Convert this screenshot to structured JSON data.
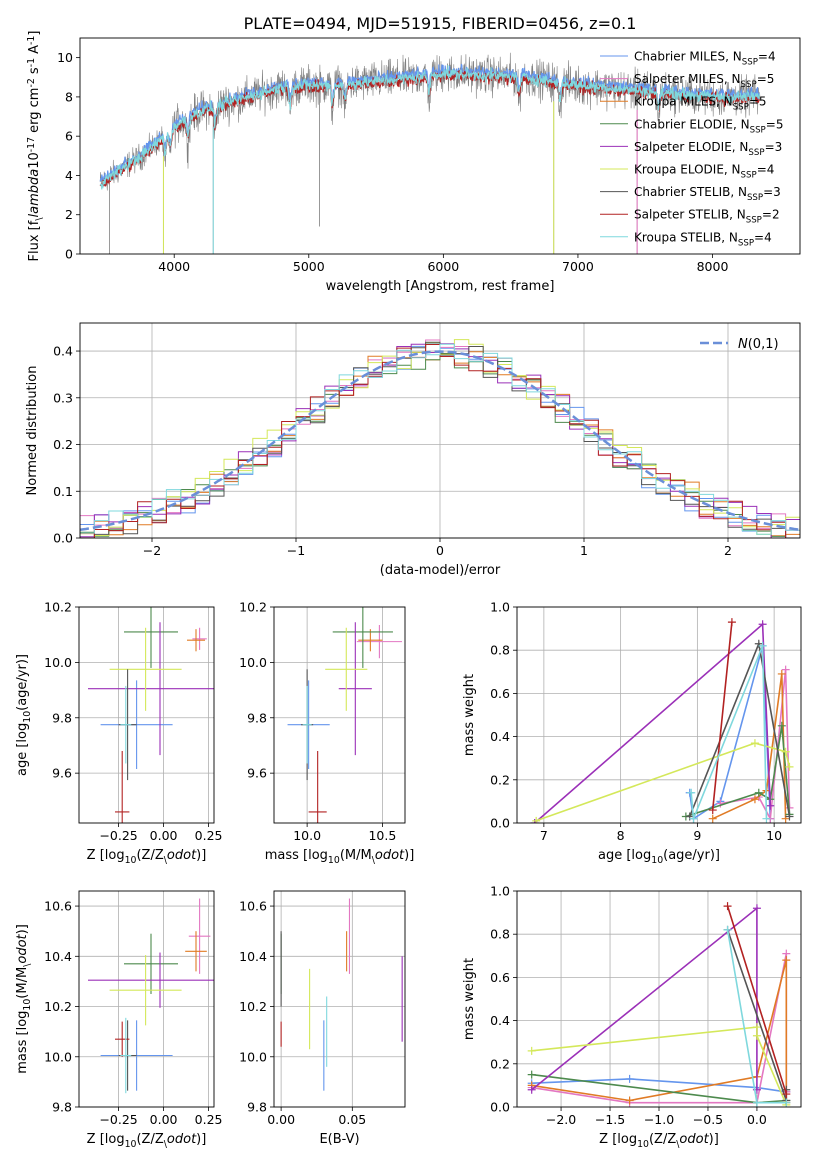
{
  "figure_title": "PLATE=0494, MJD=51915, FIBERID=0456, z=0.1",
  "models": [
    {
      "key": "cm",
      "color": "#6495ed",
      "label": "Chabrier MILES, N$_{SSP}$=4",
      "name": "Chabrier MILES",
      "nssp": "4"
    },
    {
      "key": "sm",
      "color": "#e377c2",
      "label": "Salpeter MILES, N$_{SSP}$=5",
      "name": "Salpeter MILES",
      "nssp": "5"
    },
    {
      "key": "km",
      "color": "#e07b25",
      "label": "Kroupa MILES, N$_{SSP}$=5",
      "name": "Kroupa MILES",
      "nssp": "5"
    },
    {
      "key": "ce",
      "color": "#4d8a4d",
      "label": "Chabrier ELODIE, N$_{SSP}$=5",
      "name": "Chabrier ELODIE",
      "nssp": "5"
    },
    {
      "key": "se",
      "color": "#9b30b8",
      "label": "Salpeter ELODIE, N$_{SSP}$=3",
      "name": "Salpeter ELODIE",
      "nssp": "3"
    },
    {
      "key": "ke",
      "color": "#d4e85a",
      "label": "Kroupa ELODIE, N$_{SSP}$=4",
      "name": "Kroupa ELODIE",
      "nssp": "4"
    },
    {
      "key": "cs",
      "color": "#555555",
      "label": "Chabrier STELIB, N$_{SSP}$=3",
      "name": "Chabrier STELIB",
      "nssp": "3"
    },
    {
      "key": "ss",
      "color": "#b22222",
      "label": "Salpeter STELIB, N$_{SSP}$=2",
      "name": "Salpeter STELIB",
      "nssp": "2"
    },
    {
      "key": "ks",
      "color": "#7fd8dd",
      "label": "Kroupa STELIB, N$_{SSP}$=4",
      "name": "Kroupa STELIB",
      "nssp": "4"
    }
  ],
  "chart_data": [
    {
      "id": "spectrum",
      "type": "line",
      "xlabel": "wavelength [Angstrom, rest frame]",
      "ylabel": "Flux [f$_\\lambda$10$^{-17}$ erg cm$^{-2}$ s$^{-1}$ A$^{-1}$]",
      "xlim": [
        3300,
        8650
      ],
      "ylim": [
        0,
        11
      ],
      "xticks": [
        4000,
        5000,
        6000,
        7000,
        8000
      ],
      "yticks": [
        0,
        2,
        4,
        6,
        8,
        10
      ],
      "grid": false,
      "legend": "right",
      "continuum_points": [
        [
          3450,
          3.6
        ],
        [
          3600,
          4.3
        ],
        [
          3800,
          5.2
        ],
        [
          4000,
          6.5
        ],
        [
          4200,
          7.3
        ],
        [
          4500,
          7.9
        ],
        [
          4800,
          8.5
        ],
        [
          5000,
          8.6
        ],
        [
          5200,
          8.6
        ],
        [
          5500,
          8.8
        ],
        [
          5800,
          9.0
        ],
        [
          6000,
          9.2
        ],
        [
          6300,
          9.1
        ],
        [
          6600,
          9.0
        ],
        [
          7000,
          8.6
        ],
        [
          7500,
          8.3
        ],
        [
          8000,
          8.0
        ],
        [
          8350,
          8.0
        ]
      ],
      "model_line_labels": [
        "Chabrier MILES",
        "Salpeter STELIB",
        "Kroupa STELIB"
      ],
      "absorption_lines": [
        3934,
        3969,
        4102,
        4304,
        4861,
        5175,
        5270,
        5893,
        6563,
        6867,
        7600
      ],
      "spikes": [
        [
          3520,
          0
        ],
        [
          3920,
          0
        ],
        [
          4290,
          0
        ],
        [
          5080,
          1.4
        ],
        [
          6820,
          0
        ],
        [
          7440,
          0
        ]
      ]
    },
    {
      "id": "residuals",
      "type": "histogram",
      "xlabel": "(data-model)/error",
      "ylabel": "Normed distribution",
      "xlim": [
        -2.5,
        2.5
      ],
      "ylim": [
        0,
        0.46
      ],
      "xticks": [
        -2,
        -1,
        0,
        1,
        2
      ],
      "yticks": [
        0.0,
        0.1,
        0.2,
        0.3,
        0.4
      ],
      "grid": true,
      "legend": "top-right",
      "legend_label": "$\\mathcal{N}(0,1)$",
      "bin_width": 0.1
    },
    {
      "id": "age_vs_Z",
      "type": "scatter",
      "xlabel": "Z [log$_{10}$(Z/Z$_\\odot$)]",
      "ylabel": "age  [log$_{10}$(age/yr)]",
      "xlim": [
        -0.47,
        0.28
      ],
      "ylim": [
        9.42,
        10.2
      ],
      "xticks": [
        -0.25,
        0.0,
        0.25
      ],
      "yticks": [
        9.6,
        9.8,
        10.0,
        10.2
      ],
      "grid": true,
      "points": [
        {
          "m": "cm",
          "x": -0.15,
          "y": 9.775,
          "xerr": 0.2,
          "yerr": 0.16
        },
        {
          "m": "sm",
          "x": 0.2,
          "y": 10.085,
          "xerr": 0.04,
          "yerr": 0.04
        },
        {
          "m": "km",
          "x": 0.18,
          "y": 10.08,
          "xerr": 0.05,
          "yerr": 0.04
        },
        {
          "m": "ce",
          "x": -0.07,
          "y": 10.11,
          "xerr": 0.15,
          "yerr": 0.13
        },
        {
          "m": "se",
          "x": -0.02,
          "y": 9.905,
          "xerr": 0.4,
          "yerr": 0.24
        },
        {
          "m": "ke",
          "x": -0.1,
          "y": 9.975,
          "xerr": 0.2,
          "yerr": 0.15
        },
        {
          "m": "cs",
          "x": -0.2,
          "y": 9.775,
          "xerr": 0.05,
          "yerr": 0.2
        },
        {
          "m": "ss",
          "x": -0.23,
          "y": 9.46,
          "xerr": 0.04,
          "yerr": 0.22
        },
        {
          "m": "ks",
          "x": -0.21,
          "y": 9.775,
          "xerr": 0.03,
          "yerr": 0.14
        }
      ]
    },
    {
      "id": "age_vs_mass",
      "type": "scatter",
      "xlabel": "mass [log$_{10}$(M/M$_\\odot$)]",
      "ylabel": "",
      "xlim": [
        9.78,
        10.65
      ],
      "ylim": [
        9.42,
        10.2
      ],
      "xticks": [
        10.0,
        10.5
      ],
      "yticks": [
        9.6,
        9.8,
        10.0,
        10.2
      ],
      "grid": true,
      "points": [
        {
          "m": "cm",
          "x": 10.01,
          "y": 9.775,
          "xerr": 0.14,
          "yerr": 0.16
        },
        {
          "m": "sm",
          "x": 10.48,
          "y": 10.075,
          "xerr": 0.15,
          "yerr": 0.06
        },
        {
          "m": "km",
          "x": 10.42,
          "y": 10.08,
          "xerr": 0.08,
          "yerr": 0.04
        },
        {
          "m": "ce",
          "x": 10.37,
          "y": 10.11,
          "xerr": 0.2,
          "yerr": 0.13
        },
        {
          "m": "se",
          "x": 10.32,
          "y": 9.905,
          "xerr": 0.11,
          "yerr": 0.24
        },
        {
          "m": "ke",
          "x": 10.26,
          "y": 9.975,
          "xerr": 0.14,
          "yerr": 0.15
        },
        {
          "m": "cs",
          "x": 10.0,
          "y": 9.775,
          "xerr": 0.04,
          "yerr": 0.2
        },
        {
          "m": "ss",
          "x": 10.07,
          "y": 9.46,
          "xerr": 0.06,
          "yerr": 0.22
        },
        {
          "m": "ks",
          "x": 10.0,
          "y": 9.775,
          "xerr": 0.03,
          "yerr": 0.14
        }
      ]
    },
    {
      "id": "weight_vs_age",
      "type": "line",
      "xlabel": "age  [log$_{10}$(age/yr)]",
      "ylabel": "mass weight",
      "xlim": [
        6.65,
        10.35
      ],
      "ylim": [
        0,
        1.0
      ],
      "xticks": [
        7,
        8,
        9,
        10
      ],
      "yticks": [
        0.0,
        0.2,
        0.4,
        0.6,
        0.8,
        1.0
      ],
      "grid": true,
      "series": [
        {
          "m": "cm",
          "x": [
            8.9,
            8.95,
            9.3,
            9.85,
            9.95
          ],
          "y": [
            0.14,
            0.02,
            0.1,
            0.82,
            0.02
          ]
        },
        {
          "m": "sm",
          "x": [
            9.3,
            9.8,
            9.95,
            10.15,
            10.2
          ],
          "y": [
            0.09,
            0.12,
            0.02,
            0.71,
            0.07
          ]
        },
        {
          "m": "km",
          "x": [
            9.2,
            9.75,
            9.9,
            10.1,
            10.15
          ],
          "y": [
            0.02,
            0.11,
            0.15,
            0.69,
            0.02
          ]
        },
        {
          "m": "ce",
          "x": [
            8.85,
            9.8,
            9.95,
            10.1,
            10.2
          ],
          "y": [
            0.03,
            0.14,
            0.11,
            0.45,
            0.04
          ]
        },
        {
          "m": "se",
          "x": [
            6.88,
            9.85,
            9.95
          ],
          "y": [
            0.0,
            0.92,
            0.08
          ]
        },
        {
          "m": "ke",
          "x": [
            6.9,
            9.75,
            10.15,
            10.2
          ],
          "y": [
            0.01,
            0.37,
            0.33,
            0.26
          ]
        },
        {
          "m": "cs",
          "x": [
            8.9,
            9.8,
            10.2
          ],
          "y": [
            0.03,
            0.83,
            0.03
          ]
        },
        {
          "m": "ss",
          "x": [
            9.2,
            9.45
          ],
          "y": [
            0.06,
            0.93
          ]
        },
        {
          "m": "ks",
          "x": [
            8.92,
            8.95,
            9.85,
            9.9
          ],
          "y": [
            0.14,
            0.02,
            0.82,
            0.02
          ]
        }
      ]
    },
    {
      "id": "mass_vs_Z",
      "type": "scatter",
      "xlabel": "Z [log$_{10}$(Z/Z$_\\odot$)]",
      "ylabel": "mass [log$_{10}$(M/M$_\\odot$)]",
      "xlim": [
        -0.47,
        0.28
      ],
      "ylim": [
        9.8,
        10.66
      ],
      "xticks": [
        -0.25,
        0.0,
        0.25
      ],
      "yticks": [
        9.8,
        10.0,
        10.2,
        10.4,
        10.6
      ],
      "grid": true,
      "points": [
        {
          "m": "cm",
          "x": -0.15,
          "y": 10.005,
          "xerr": 0.2,
          "yerr": 0.14
        },
        {
          "m": "sm",
          "x": 0.2,
          "y": 10.48,
          "xerr": 0.06,
          "yerr": 0.15
        },
        {
          "m": "km",
          "x": 0.18,
          "y": 10.42,
          "xerr": 0.06,
          "yerr": 0.08
        },
        {
          "m": "ce",
          "x": -0.07,
          "y": 10.37,
          "xerr": 0.15,
          "yerr": 0.12
        },
        {
          "m": "se",
          "x": -0.02,
          "y": 10.305,
          "xerr": 0.4,
          "yerr": 0.11
        },
        {
          "m": "ke",
          "x": -0.1,
          "y": 10.265,
          "xerr": 0.2,
          "yerr": 0.14
        },
        {
          "m": "cs",
          "x": -0.2,
          "y": 10.005,
          "xerr": 0.05,
          "yerr": 0.14
        },
        {
          "m": "ss",
          "x": -0.23,
          "y": 10.07,
          "xerr": 0.04,
          "yerr": 0.07
        },
        {
          "m": "ks",
          "x": -0.21,
          "y": 10.005,
          "xerr": 0.03,
          "yerr": 0.15
        }
      ]
    },
    {
      "id": "mass_vs_EBV",
      "type": "scatter",
      "xlabel": "E(B-V)",
      "ylabel": "",
      "xlim": [
        -0.005,
        0.087
      ],
      "ylim": [
        9.8,
        10.66
      ],
      "xticks": [
        0.0,
        0.05
      ],
      "yticks": [
        9.8,
        10.0,
        10.2,
        10.4,
        10.6
      ],
      "grid": true,
      "points": [
        {
          "m": "cm",
          "x": 0.03,
          "y": 10.005,
          "xerr": 0,
          "yerr": 0.14
        },
        {
          "m": "sm",
          "x": 0.048,
          "y": 10.48,
          "xerr": 0,
          "yerr": 0.15
        },
        {
          "m": "km",
          "x": 0.046,
          "y": 10.42,
          "xerr": 0,
          "yerr": 0.08
        },
        {
          "m": "ce",
          "x": 0.0,
          "y": 10.37,
          "xerr": 0,
          "yerr": 0.12
        },
        {
          "m": "se",
          "x": 0.085,
          "y": 10.23,
          "xerr": 0,
          "yerr": 0.17
        },
        {
          "m": "ke",
          "x": 0.02,
          "y": 10.19,
          "xerr": 0,
          "yerr": 0.16
        },
        {
          "m": "cs",
          "x": 0.0,
          "y": 10.35,
          "xerr": 0,
          "yerr": 0.15
        },
        {
          "m": "ss",
          "x": 0.0,
          "y": 10.09,
          "xerr": 0,
          "yerr": 0.05
        },
        {
          "m": "ks",
          "x": 0.032,
          "y": 10.1,
          "xerr": 0,
          "yerr": 0.14
        }
      ]
    },
    {
      "id": "weight_vs_Z",
      "type": "line",
      "xlabel": "Z [log$_{10}$(Z/Z$_\\odot$)]",
      "ylabel": "mass weight",
      "xlim": [
        -2.45,
        0.45
      ],
      "ylim": [
        0,
        1.0
      ],
      "xticks": [
        -2.0,
        -1.5,
        -1.0,
        -0.5,
        0.0
      ],
      "yticks": [
        0.0,
        0.2,
        0.4,
        0.6,
        0.8,
        1.0
      ],
      "grid": true,
      "series": [
        {
          "m": "cm",
          "x": [
            -2.3,
            -1.3,
            0.0,
            0.3
          ],
          "y": [
            0.11,
            0.13,
            0.09,
            0.07
          ]
        },
        {
          "m": "sm",
          "x": [
            -2.3,
            -1.3,
            0.0,
            0.3,
            0.3
          ],
          "y": [
            0.09,
            0.02,
            0.02,
            0.71,
            0.07
          ]
        },
        {
          "m": "km",
          "x": [
            -2.3,
            -1.3,
            0.0,
            0.3,
            0.3
          ],
          "y": [
            0.1,
            0.03,
            0.14,
            0.68,
            0.02
          ]
        },
        {
          "m": "ce",
          "x": [
            -2.3,
            0.0,
            0.3
          ],
          "y": [
            0.15,
            0.02,
            0.03
          ]
        },
        {
          "m": "se",
          "x": [
            -2.3,
            0.0,
            0.0
          ],
          "y": [
            0.08,
            0.92,
            0.08
          ]
        },
        {
          "m": "ke",
          "x": [
            -2.3,
            0.0,
            0.0,
            0.3
          ],
          "y": [
            0.26,
            0.37,
            0.33,
            0.01
          ]
        },
        {
          "m": "cs",
          "x": [
            -0.3,
            0.3,
            0.3
          ],
          "y": [
            0.82,
            0.03,
            0.08
          ]
        },
        {
          "m": "ss",
          "x": [
            -0.3,
            0.3
          ],
          "y": [
            0.93,
            0.06
          ]
        },
        {
          "m": "ks",
          "x": [
            -0.3,
            0.0,
            0.3
          ],
          "y": [
            0.82,
            0.02,
            0.02
          ]
        }
      ]
    }
  ]
}
